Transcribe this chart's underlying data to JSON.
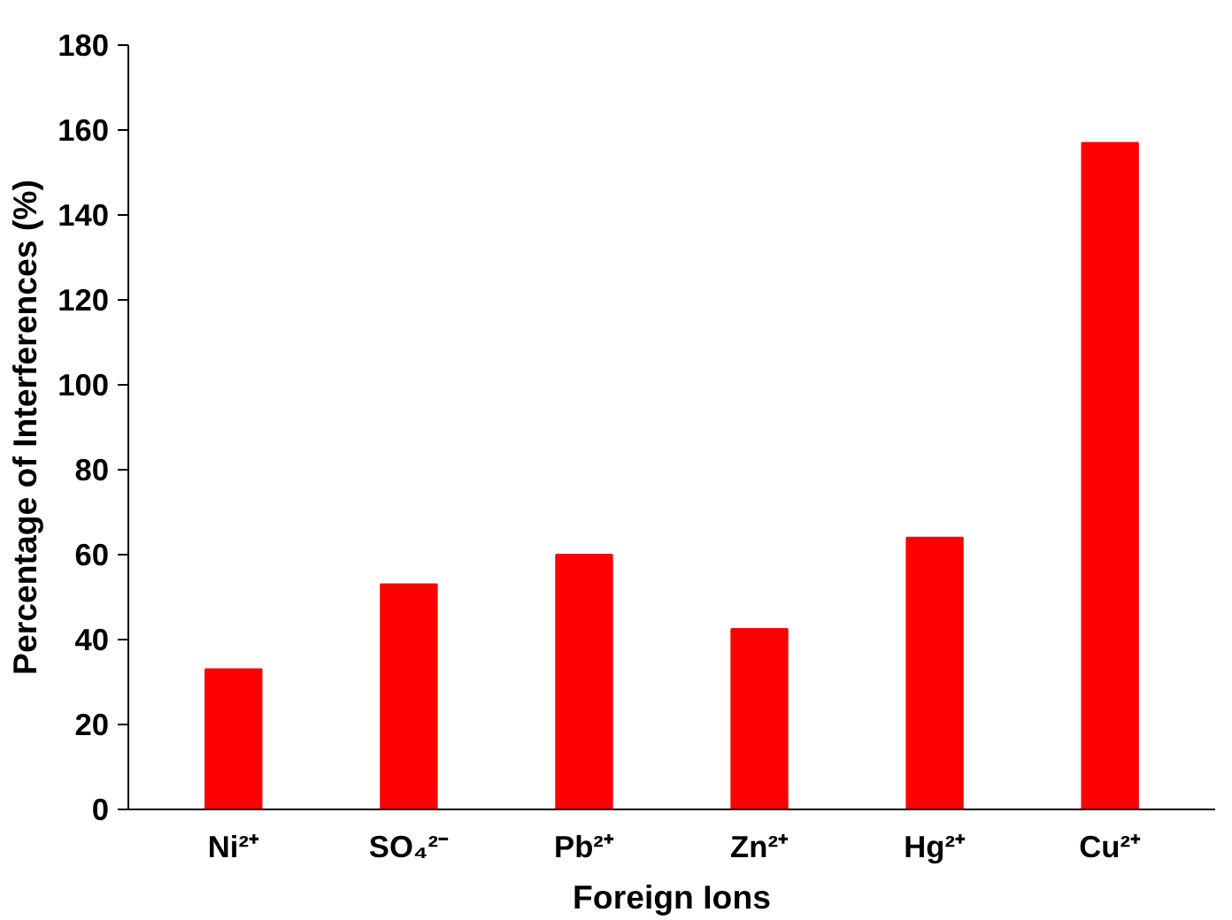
{
  "chart_data": {
    "type": "bar",
    "xlabel": "Foreign Ions",
    "ylabel": "Percentage of Interferences (%)",
    "categories": [
      "Ni²⁺",
      "SO₄²⁻",
      "Pb²⁺",
      "Zn²⁺",
      "Hg²⁺",
      "Cu²⁺"
    ],
    "values": [
      33,
      53,
      60,
      42.5,
      64,
      157
    ],
    "color": "#ff0000",
    "ylim": [
      0,
      180
    ],
    "yticks": [
      0,
      20,
      40,
      60,
      80,
      100,
      120,
      140,
      160,
      180
    ],
    "grid": false
  }
}
